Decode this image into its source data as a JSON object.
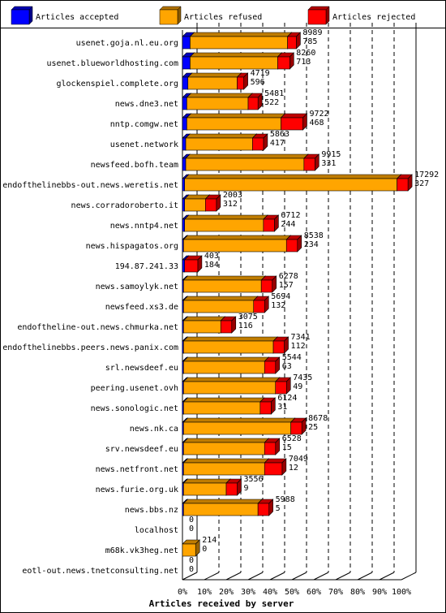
{
  "chart_data": {
    "type": "bar",
    "orientation": "horizontal",
    "stacked": true,
    "title": "",
    "xlabel": "Articles received by server",
    "ylabel": "",
    "xlim": [
      0,
      100
    ],
    "x_ticks": [
      "0%",
      "10%",
      "20%",
      "30%",
      "40%",
      "50%",
      "60%",
      "70%",
      "80%",
      "90%",
      "100%"
    ],
    "legend_position": "top",
    "series": [
      {
        "name": "Articles accepted",
        "color": "#0000ff"
      },
      {
        "name": "Articles refused",
        "color": "#ffa500"
      },
      {
        "name": "Articles rejected",
        "color": "#ff0000"
      }
    ],
    "categories": [
      "usenet.goja.nl.eu.org",
      "usenet.blueworldhosting.com",
      "glockenspiel.complete.org",
      "news.dne3.net",
      "nntp.comgw.net",
      "usenet.network",
      "newsfeed.bofh.team",
      "endofthelinebbs-out.news.weretis.net",
      "news.corradoroberto.it",
      "news.nntp4.net",
      "news.hispagatos.org",
      "194.87.241.33",
      "news.samoylyk.net",
      "newsfeed.xs3.de",
      "endoftheline-out.news.chmurka.net",
      "endofthelinebbs.peers.news.panix.com",
      "srl.newsdeef.eu",
      "peering.usenet.ovh",
      "news.sonologic.net",
      "news.nk.ca",
      "srv.newsdeef.eu",
      "news.netfront.net",
      "news.furie.org.uk",
      "news.bbs.nz",
      "localhost",
      "m68k.vk3heg.net",
      "eotl-out.news.tnetconsulting.net"
    ],
    "totals": [
      "8989",
      "8260",
      "4719",
      "5481",
      "9722",
      "5863",
      "9915",
      "17292",
      "2003",
      "6712",
      "8538",
      "403",
      "6278",
      "5694",
      "3075",
      "7341",
      "5544",
      "7435",
      "6124",
      "8678",
      "6528",
      "7049",
      "3556",
      "5988",
      "0",
      "214",
      "0"
    ],
    "secondary": [
      "785",
      "713",
      "596",
      "522",
      "468",
      "417",
      "331",
      "327",
      "312",
      "244",
      "234",
      "184",
      "157",
      "132",
      "116",
      "112",
      "63",
      "49",
      "31",
      "25",
      "15",
      "12",
      "9",
      "5",
      "0",
      "0",
      "0"
    ],
    "accepted_pct": [
      3.5,
      3.5,
      2.5,
      2,
      2,
      1.5,
      1.5,
      1,
      1,
      1,
      0.5,
      1,
      0.5,
      0.5,
      0.5,
      0.5,
      0.5,
      0.5,
      0.5,
      0.5,
      0.5,
      0.5,
      0.5,
      0.5,
      0,
      0,
      0
    ],
    "refused_pct": [
      44.5,
      40,
      22.5,
      28,
      43,
      30.5,
      54,
      97,
      9.5,
      36,
      47,
      0,
      35.5,
      32,
      17,
      41,
      37,
      42,
      35,
      49,
      37,
      37,
      19.5,
      34,
      0,
      6,
      0
    ],
    "rejected_pct": [
      4,
      5.5,
      3,
      4.5,
      10,
      5,
      5,
      5,
      5,
      5,
      5,
      6,
      5,
      5,
      5,
      5,
      5,
      5,
      5,
      5,
      5,
      8,
      5,
      5,
      0,
      0,
      0
    ]
  }
}
